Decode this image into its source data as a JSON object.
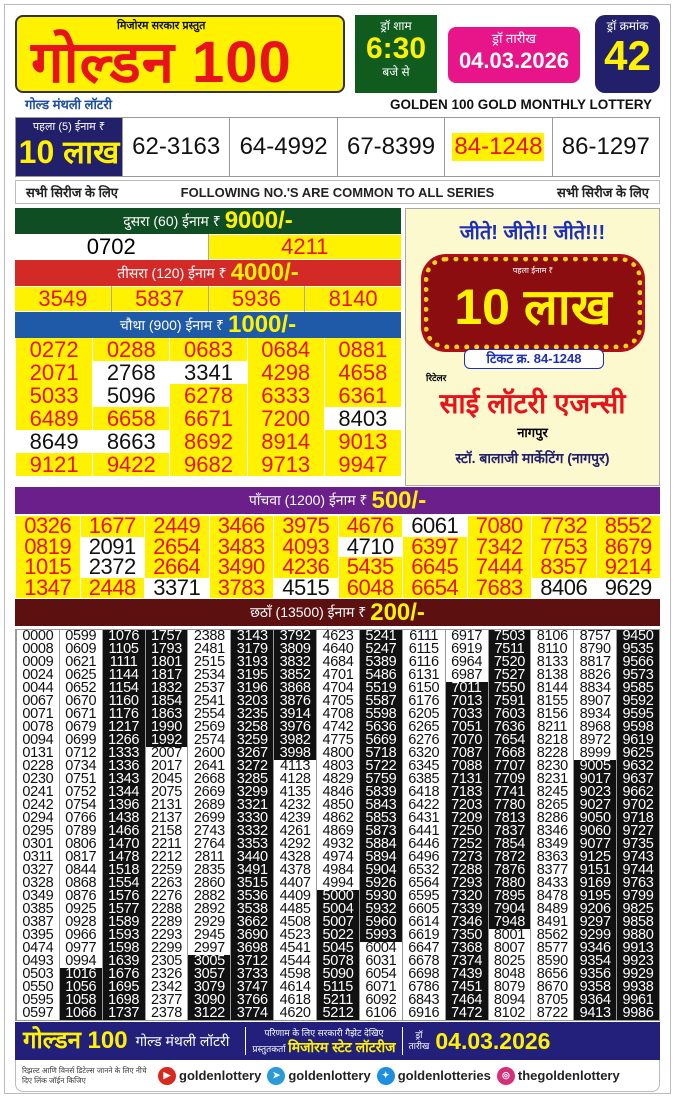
{
  "header": {
    "presenter": "मिजोरम सरकार प्रस्तुत",
    "logo": "गोल्डन 100",
    "time_label": "ड्रॉ शाम",
    "time": "6:30",
    "time_suffix": "बजे से",
    "date_label": "ड्रॉ तारीख",
    "date": "04.03.2026",
    "draw_label": "ड्रॉ क्रमांक",
    "draw_no": "42",
    "subtitle_hi": "गोल्ड मंथली लॉटरी",
    "subtitle_en": "GOLDEN 100 GOLD MONTHLY LOTTERY"
  },
  "first_prize": {
    "label": "पहला (5) ईनाम ₹",
    "amount": "10 लाख",
    "numbers": [
      "62-3163",
      "64-4992",
      "67-8399",
      "84-1248",
      "86-1297"
    ],
    "winner": "84-1248"
  },
  "common": {
    "left": "सभी सिरीज के लिए",
    "center": "FOLLOWING NO.'S ARE COMMON TO ALL SERIES",
    "right": "सभी सिरीज के लिए"
  },
  "second_prize": {
    "label": "दुसरा (60) ईनाम ₹",
    "amount": "9000/-",
    "numbers": [
      {
        "n": "0702",
        "hl": false
      },
      {
        "n": "4211",
        "hl": true
      }
    ]
  },
  "third_prize": {
    "label": "तीसरा (120) ईनाम ₹",
    "amount": "4000/-",
    "numbers": [
      {
        "n": "3549",
        "hl": true
      },
      {
        "n": "5837",
        "hl": true
      },
      {
        "n": "5936",
        "hl": true
      },
      {
        "n": "8140",
        "hl": true
      }
    ]
  },
  "fourth_prize": {
    "label": "चौथा (900) ईनाम ₹",
    "amount": "1000/-",
    "rows": [
      [
        {
          "n": "0272",
          "hl": true
        },
        {
          "n": "0288",
          "hl": true
        },
        {
          "n": "0683",
          "hl": true
        },
        {
          "n": "0684",
          "hl": true
        },
        {
          "n": "0881",
          "hl": true
        }
      ],
      [
        {
          "n": "2071",
          "hl": true
        },
        {
          "n": "2768",
          "hl": false
        },
        {
          "n": "3341",
          "hl": false
        },
        {
          "n": "4298",
          "hl": true
        },
        {
          "n": "4658",
          "hl": true
        }
      ],
      [
        {
          "n": "5033",
          "hl": true
        },
        {
          "n": "5096",
          "hl": false
        },
        {
          "n": "6278",
          "hl": true
        },
        {
          "n": "6333",
          "hl": true
        },
        {
          "n": "6361",
          "hl": true
        }
      ],
      [
        {
          "n": "6489",
          "hl": true
        },
        {
          "n": "6658",
          "hl": true
        },
        {
          "n": "6671",
          "hl": true
        },
        {
          "n": "7200",
          "hl": true
        },
        {
          "n": "8403",
          "hl": false
        }
      ],
      [
        {
          "n": "8649",
          "hl": false
        },
        {
          "n": "8663",
          "hl": false
        },
        {
          "n": "8692",
          "hl": true
        },
        {
          "n": "8914",
          "hl": true
        },
        {
          "n": "9013",
          "hl": true
        }
      ],
      [
        {
          "n": "9121",
          "hl": true
        },
        {
          "n": "9422",
          "hl": true
        },
        {
          "n": "9682",
          "hl": true
        },
        {
          "n": "9713",
          "hl": true
        },
        {
          "n": "9947",
          "hl": true
        }
      ]
    ]
  },
  "ad": {
    "headline": "जीते! जीते!! जीते!!!",
    "prize_label": "पहला ईनाम ₹",
    "prize": "10 लाख",
    "ticket": "टिकट क्र. 84-1248",
    "retailer_label": "रिटेलर",
    "agency": "साई लॉटरी एजन्सी",
    "city": "नागपुर",
    "stockist": "स्टॉ. बालाजी मार्केटिंग (नागपुर)"
  },
  "fifth_prize": {
    "label": "पाँचवा (1200) ईनाम ₹",
    "amount": "500/-",
    "rows": [
      [
        {
          "n": "0326",
          "hl": true
        },
        {
          "n": "1677",
          "hl": true
        },
        {
          "n": "2449",
          "hl": true
        },
        {
          "n": "3466",
          "hl": true
        },
        {
          "n": "3975",
          "hl": true
        },
        {
          "n": "4676",
          "hl": true
        },
        {
          "n": "6061",
          "hl": false
        },
        {
          "n": "7080",
          "hl": true
        },
        {
          "n": "7732",
          "hl": true
        },
        {
          "n": "8552",
          "hl": true
        }
      ],
      [
        {
          "n": "0819",
          "hl": true
        },
        {
          "n": "2091",
          "hl": false
        },
        {
          "n": "2654",
          "hl": true
        },
        {
          "n": "3483",
          "hl": true
        },
        {
          "n": "4093",
          "hl": true
        },
        {
          "n": "4710",
          "hl": false
        },
        {
          "n": "6397",
          "hl": true
        },
        {
          "n": "7342",
          "hl": true
        },
        {
          "n": "7753",
          "hl": true
        },
        {
          "n": "8679",
          "hl": true
        }
      ],
      [
        {
          "n": "1015",
          "hl": true
        },
        {
          "n": "2372",
          "hl": false
        },
        {
          "n": "2664",
          "hl": true
        },
        {
          "n": "3490",
          "hl": true
        },
        {
          "n": "4236",
          "hl": true
        },
        {
          "n": "5435",
          "hl": true
        },
        {
          "n": "6645",
          "hl": true
        },
        {
          "n": "7444",
          "hl": true
        },
        {
          "n": "8357",
          "hl": true
        },
        {
          "n": "9214",
          "hl": true
        }
      ],
      [
        {
          "n": "1347",
          "hl": true
        },
        {
          "n": "2448",
          "hl": true
        },
        {
          "n": "3371",
          "hl": false
        },
        {
          "n": "3783",
          "hl": true
        },
        {
          "n": "4515",
          "hl": false
        },
        {
          "n": "6048",
          "hl": true
        },
        {
          "n": "6654",
          "hl": true
        },
        {
          "n": "7683",
          "hl": true
        },
        {
          "n": "8406",
          "hl": false
        },
        {
          "n": "9629",
          "hl": false
        }
      ]
    ]
  },
  "sixth_prize": {
    "label": "छठाँ (13500) ईनाम ₹",
    "amount": "200/-",
    "columns": [
      [
        "0000",
        "0008",
        "0009",
        "0024",
        "0044",
        "0067",
        "0071",
        "0078",
        "0094",
        "0131",
        "0228",
        "0230",
        "0241",
        "0242",
        "0294",
        "0295",
        "0301",
        "0311",
        "0327",
        "0328",
        "0349",
        "0385",
        "0387",
        "0395",
        "0474",
        "0493",
        "0503",
        "0550",
        "0595",
        "0597"
      ],
      [
        "0599",
        "0609",
        "0621",
        "0625",
        "0652",
        "0670",
        "0671",
        "0679",
        "0699",
        "0712",
        "0734",
        "0751",
        "0752",
        "0754",
        "0766",
        "0789",
        "0806",
        "0817",
        "0844",
        "0868",
        "0876",
        "0925",
        "0928",
        "0966",
        "0977",
        "0994",
        "1016",
        "1056",
        "1058",
        "1066"
      ],
      [
        "1076",
        "1105",
        "1111",
        "1144",
        "1154",
        "1160",
        "1176",
        "1217",
        "1266",
        "1333",
        "1336",
        "1343",
        "1344",
        "1396",
        "1438",
        "1466",
        "1470",
        "1478",
        "1518",
        "1554",
        "1576",
        "1577",
        "1589",
        "1593",
        "1598",
        "1639",
        "1676",
        "1695",
        "1698",
        "1737"
      ],
      [
        "1757",
        "1793",
        "1801",
        "1817",
        "1832",
        "1854",
        "1863",
        "1990",
        "1992",
        "2007",
        "2017",
        "2045",
        "2075",
        "2131",
        "2137",
        "2158",
        "2211",
        "2212",
        "2259",
        "2263",
        "2276",
        "2288",
        "2289",
        "2293",
        "2299",
        "2305",
        "2326",
        "2342",
        "2377",
        "2378"
      ],
      [
        "2388",
        "2481",
        "2515",
        "2534",
        "2537",
        "2541",
        "2554",
        "2569",
        "2574",
        "2600",
        "2641",
        "2668",
        "2669",
        "2689",
        "2699",
        "2743",
        "2764",
        "2811",
        "2835",
        "2860",
        "2882",
        "2892",
        "2929",
        "2945",
        "2997",
        "3005",
        "3057",
        "3079",
        "3090",
        "3122"
      ],
      [
        "3143",
        "3179",
        "3193",
        "3195",
        "3196",
        "3203",
        "3235",
        "3258",
        "3259",
        "3267",
        "3272",
        "3285",
        "3299",
        "3321",
        "3330",
        "3332",
        "3353",
        "3440",
        "3491",
        "3515",
        "3536",
        "3538",
        "3662",
        "3690",
        "3698",
        "3712",
        "3733",
        "3747",
        "3766",
        "3774"
      ],
      [
        "3792",
        "3809",
        "3832",
        "3852",
        "3868",
        "3876",
        "3914",
        "3976",
        "3982",
        "3998",
        "4113",
        "4128",
        "4135",
        "4232",
        "4239",
        "4261",
        "4292",
        "4328",
        "4378",
        "4407",
        "4409",
        "4485",
        "4508",
        "4523",
        "4541",
        "4544",
        "4598",
        "4614",
        "4618",
        "4620"
      ],
      [
        "4623",
        "4640",
        "4684",
        "4701",
        "4704",
        "4705",
        "4708",
        "4742",
        "4775",
        "4800",
        "4803",
        "4829",
        "4846",
        "4850",
        "4862",
        "4869",
        "4932",
        "4974",
        "4984",
        "4994",
        "5000",
        "5004",
        "5007",
        "5022",
        "5045",
        "5078",
        "5090",
        "5115",
        "5211",
        "5212"
      ],
      [
        "5241",
        "5247",
        "5389",
        "5486",
        "5519",
        "5587",
        "5598",
        "5636",
        "5669",
        "5718",
        "5722",
        "5759",
        "5839",
        "5843",
        "5853",
        "5873",
        "5884",
        "5894",
        "5904",
        "5926",
        "5930",
        "5932",
        "5960",
        "5993",
        "6004",
        "6031",
        "6054",
        "6071",
        "6092",
        "6106"
      ],
      [
        "6111",
        "6115",
        "6116",
        "6131",
        "6150",
        "6176",
        "6205",
        "6265",
        "6276",
        "6320",
        "6345",
        "6385",
        "6418",
        "6422",
        "6431",
        "6441",
        "6446",
        "6496",
        "6532",
        "6564",
        "6595",
        "6605",
        "6614",
        "6619",
        "6647",
        "6678",
        "6698",
        "6786",
        "6843",
        "6916"
      ],
      [
        "6917",
        "6919",
        "6964",
        "6987",
        "7011",
        "7013",
        "7033",
        "7051",
        "7070",
        "7087",
        "7088",
        "7131",
        "7183",
        "7203",
        "7209",
        "7250",
        "7252",
        "7273",
        "7288",
        "7293",
        "7320",
        "7339",
        "7346",
        "7350",
        "7368",
        "7374",
        "7439",
        "7451",
        "7464",
        "7472"
      ],
      [
        "7503",
        "7511",
        "7520",
        "7527",
        "7550",
        "7591",
        "7603",
        "7636",
        "7654",
        "7668",
        "7707",
        "7709",
        "7741",
        "7780",
        "7813",
        "7837",
        "7854",
        "7872",
        "7876",
        "7880",
        "7895",
        "7904",
        "7948",
        "8001",
        "8007",
        "8025",
        "8048",
        "8079",
        "8094",
        "8102"
      ],
      [
        "8106",
        "8110",
        "8133",
        "8138",
        "8144",
        "8155",
        "8156",
        "8211",
        "8218",
        "8228",
        "8230",
        "8231",
        "8245",
        "8265",
        "8286",
        "8346",
        "8349",
        "8363",
        "8377",
        "8433",
        "8478",
        "8489",
        "8491",
        "8562",
        "8577",
        "8590",
        "8656",
        "8670",
        "8705",
        "8722"
      ],
      [
        "8757",
        "8790",
        "8817",
        "8826",
        "8834",
        "8907",
        "8934",
        "8968",
        "8972",
        "8999",
        "9005",
        "9017",
        "9023",
        "9027",
        "9050",
        "9060",
        "9077",
        "9125",
        "9151",
        "9169",
        "9195",
        "9206",
        "9297",
        "9299",
        "9346",
        "9354",
        "9356",
        "9358",
        "9364",
        "9413"
      ],
      [
        "9450",
        "9535",
        "9566",
        "9573",
        "9585",
        "9592",
        "9595",
        "9598",
        "9619",
        "9625",
        "9632",
        "9637",
        "9662",
        "9702",
        "9718",
        "9727",
        "9735",
        "9743",
        "9744",
        "9763",
        "9799",
        "9825",
        "9858",
        "9880",
        "9913",
        "9923",
        "9929",
        "9938",
        "9961",
        "9986"
      ]
    ]
  },
  "footer": {
    "logo": "गोल्डन 100",
    "subtitle": "गोल्ड मंथली लॉटरी",
    "gazette": "परिणाम के लिए सरकारी गैझेट देखिए",
    "presenter_label": "प्रस्तुतकर्ता",
    "presenter": "मिजोरम स्टेट लॉटरीज",
    "date_label_1": "ड्रॉ",
    "date_label_2": "तारीख",
    "date": "04.03.2026",
    "join_note": "रिझल्ट आणि विनर्स डिटेल्स जानने के लिए नीचे दिए लिंक जॉईन किजिए",
    "social": [
      {
        "icon": "youtube-icon",
        "handle": "goldenlottery",
        "color": "#d62a1f"
      },
      {
        "icon": "telegram-icon",
        "handle": "goldenlottery",
        "color": "#2a9bd8"
      },
      {
        "icon": "twitter-icon",
        "handle": "goldenlotteries",
        "color": "#1d8fe0"
      },
      {
        "icon": "instagram-icon",
        "handle": "thegoldenlottery",
        "color": "#d6307a"
      }
    ]
  },
  "colors": {
    "yellow": "#fff200",
    "red": "#e8121b",
    "navy": "#22206a",
    "green": "#0f5c1e",
    "pink": "#e8158a",
    "purple": "#6a1f8a",
    "maroon": "#5c1010",
    "blue": "#1f5aa8"
  }
}
